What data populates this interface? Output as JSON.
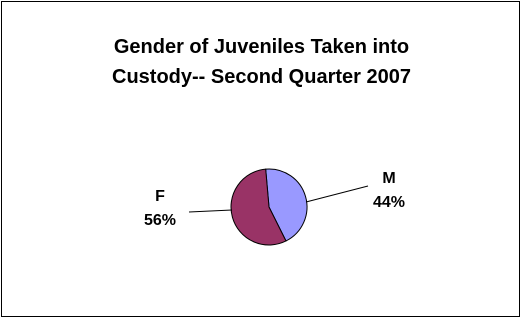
{
  "chart_data": {
    "type": "pie",
    "title_lines": [
      "Gender of Juveniles Taken into",
      "Custody-- Second Quarter 2007"
    ],
    "slices": [
      {
        "label": "M",
        "value": 44,
        "value_label": "44%",
        "color": "#9999ff"
      },
      {
        "label": "F",
        "value": 56,
        "value_label": "56%",
        "color": "#993366"
      }
    ],
    "legend": "none",
    "border_color": "#000000",
    "leader_line_color": "#000000"
  }
}
